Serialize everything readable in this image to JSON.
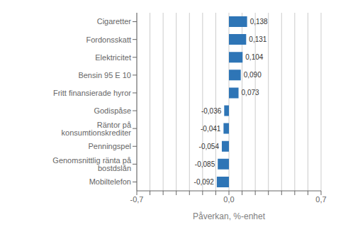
{
  "chart_data": {
    "type": "bar",
    "orientation": "horizontal",
    "categories": [
      "Mobiltelefon",
      "Genomsnittlig ränta på bostdslån",
      "Penningspel",
      "Räntor på konsumtionskrediter",
      "Godispåse",
      "Fritt finansierade hyror",
      "Bensin 95 E 10",
      "Elektricitet",
      "Fordonsskatt",
      "Cigaretter"
    ],
    "values": [
      -0.092,
      -0.085,
      -0.054,
      -0.041,
      -0.036,
      0.073,
      0.09,
      0.104,
      0.131,
      0.138
    ],
    "value_labels": [
      "-0,092",
      "-0,085",
      "-0,054",
      "-0,041",
      "-0,036",
      "0,073",
      "0,090",
      "0,104",
      "0,131",
      "0,138"
    ],
    "data_labels": true,
    "color": "#2E75B6",
    "xlabel": "Påverkan, %-enhet",
    "xlim": [
      -0.7,
      0.7
    ],
    "xticks": [
      {
        "value": -0.7,
        "label": "-0,7"
      },
      {
        "value": -0.6,
        "label": null
      },
      {
        "value": -0.5,
        "label": null
      },
      {
        "value": -0.4,
        "label": null
      },
      {
        "value": -0.3,
        "label": null
      },
      {
        "value": -0.2,
        "label": null
      },
      {
        "value": -0.1,
        "label": null
      },
      {
        "value": 0.0,
        "label": "0,0"
      },
      {
        "value": 0.1,
        "label": null
      },
      {
        "value": 0.2,
        "label": null
      },
      {
        "value": 0.3,
        "label": null
      },
      {
        "value": 0.4,
        "label": null
      },
      {
        "value": 0.5,
        "label": null
      },
      {
        "value": 0.6,
        "label": null
      },
      {
        "value": 0.7,
        "label": "0,7"
      }
    ],
    "grid": true
  }
}
